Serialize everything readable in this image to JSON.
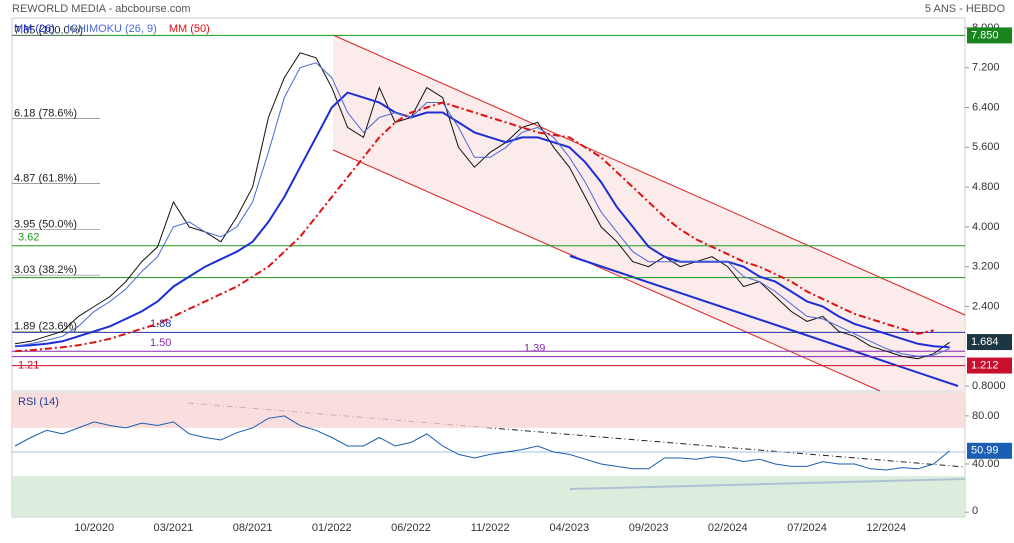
{
  "header": {
    "title": "REWORLD MEDIA - abcbourse.com",
    "period": "5 ANS - HEBDO"
  },
  "chart_data": [
    {
      "type": "line",
      "categories": [
        null,
        null,
        null,
        null,
        null,
        "10/2020",
        null,
        null,
        null,
        null,
        "03/2021",
        null,
        null,
        null,
        null,
        "08/2021",
        null,
        null,
        null,
        null,
        "01/2022",
        null,
        null,
        null,
        null,
        "06/2022",
        null,
        null,
        null,
        null,
        "11/2022",
        null,
        null,
        null,
        null,
        "04/2023",
        null,
        null,
        null,
        null,
        "09/2023",
        null,
        null,
        null,
        null,
        "02/2024",
        null,
        null,
        null,
        null,
        "07/2024",
        null,
        null,
        null,
        null,
        "12/2024",
        null,
        null,
        null,
        null
      ],
      "values": [
        1.65,
        1.7,
        1.8,
        1.9,
        2.2,
        2.4,
        2.6,
        2.9,
        3.3,
        3.6,
        4.5,
        4.0,
        3.9,
        3.7,
        4.2,
        4.8,
        6.2,
        7.0,
        7.5,
        7.4,
        6.8,
        6.0,
        5.8,
        6.8,
        6.1,
        6.2,
        6.8,
        6.6,
        5.6,
        5.2,
        5.5,
        5.7,
        6.0,
        6.1,
        5.6,
        5.2,
        4.6,
        4.0,
        3.7,
        3.3,
        3.2,
        3.4,
        3.2,
        3.3,
        3.4,
        3.2,
        2.8,
        2.9,
        2.6,
        2.3,
        2.1,
        2.2,
        1.9,
        1.8,
        1.6,
        1.5,
        1.4,
        1.35,
        1.45,
        1.68
      ],
      "color": "#111111",
      "series": [
        {
          "name": "MM (26)",
          "color": "#1c2fd6",
          "values": [
            1.6,
            1.62,
            1.65,
            1.7,
            1.8,
            1.9,
            2.0,
            2.15,
            2.3,
            2.5,
            2.8,
            3.0,
            3.2,
            3.35,
            3.5,
            3.7,
            4.1,
            4.6,
            5.2,
            5.8,
            6.4,
            6.7,
            6.6,
            6.5,
            6.3,
            6.2,
            6.3,
            6.3,
            6.1,
            5.9,
            5.8,
            5.7,
            5.8,
            5.8,
            5.7,
            5.6,
            5.3,
            4.9,
            4.4,
            4.0,
            3.6,
            3.4,
            3.3,
            3.3,
            3.3,
            3.3,
            3.2,
            3.0,
            2.9,
            2.7,
            2.5,
            2.4,
            2.2,
            2.05,
            1.95,
            1.85,
            1.75,
            1.65,
            1.6,
            1.58
          ]
        },
        {
          "name": "ICHIMOKU (26, 9)",
          "color": "#4a68d8",
          "values": [
            1.6,
            1.65,
            1.72,
            1.8,
            2.0,
            2.3,
            2.5,
            2.75,
            3.1,
            3.4,
            4.0,
            4.1,
            3.9,
            3.8,
            4.0,
            4.5,
            5.5,
            6.6,
            7.2,
            7.3,
            7.0,
            6.3,
            5.9,
            6.2,
            6.3,
            6.2,
            6.5,
            6.5,
            6.0,
            5.4,
            5.4,
            5.6,
            5.9,
            6.0,
            5.8,
            5.4,
            4.9,
            4.3,
            3.9,
            3.5,
            3.3,
            3.3,
            3.3,
            3.3,
            3.3,
            3.3,
            3.0,
            2.9,
            2.7,
            2.45,
            2.2,
            2.15,
            2.0,
            1.85,
            1.7,
            1.55,
            1.45,
            1.4,
            1.42,
            1.55
          ]
        },
        {
          "name": "MM (50)",
          "color": "#dd1111",
          "dashed": true,
          "values": [
            1.5,
            1.52,
            1.55,
            1.58,
            1.62,
            1.68,
            1.75,
            1.85,
            1.95,
            2.05,
            2.2,
            2.35,
            2.5,
            2.65,
            2.8,
            3.0,
            3.2,
            3.5,
            3.8,
            4.2,
            4.6,
            5.0,
            5.4,
            5.8,
            6.1,
            6.3,
            6.4,
            6.5,
            6.4,
            6.3,
            6.2,
            6.1,
            6.0,
            5.9,
            5.85,
            5.8,
            5.6,
            5.4,
            5.1,
            4.8,
            4.5,
            4.2,
            3.95,
            3.75,
            3.6,
            3.45,
            3.3,
            3.2,
            3.05,
            2.9,
            2.7,
            2.55,
            2.4,
            2.25,
            2.15,
            2.05,
            1.95,
            1.85,
            1.92,
            null
          ]
        }
      ],
      "ylim": [
        0.7,
        8.2
      ],
      "yticks": [
        {
          "value": 8,
          "label": "8.000"
        },
        {
          "value": 7.2,
          "label": "7.200"
        },
        {
          "value": 6.4,
          "label": "6.400"
        },
        {
          "value": 5.6,
          "label": "5.600"
        },
        {
          "value": 4.8,
          "label": "4.800"
        },
        {
          "value": 4,
          "label": "4.000"
        },
        {
          "value": 3.2,
          "label": "3.200"
        },
        {
          "value": 2.4,
          "label": "2.400"
        },
        {
          "value": 0.8,
          "label": "0.8000"
        }
      ],
      "levels": [
        {
          "value": 7.85,
          "label": "7.85 (100.0%)"
        },
        {
          "value": 6.18,
          "label": "6.18 (78.6%)"
        },
        {
          "value": 4.87,
          "label": "4.87 (61.8%)"
        },
        {
          "value": 3.95,
          "label": "3.95 (50.0%)"
        },
        {
          "value": 3.03,
          "label": "3.03 (38.2%)"
        },
        {
          "value": 1.89,
          "label": "1.89 (23.6%)"
        }
      ],
      "hlines": [
        {
          "value": 7.85,
          "color": "#1a9a1a"
        },
        {
          "value": 3.62,
          "label": "3.62",
          "color": "#1a9a1a"
        },
        {
          "value": 2.98,
          "color": "#1a9a1a"
        },
        {
          "value": 1.88,
          "label": "1.88",
          "color": "#2233aa"
        },
        {
          "value": 1.5,
          "label": "1.50",
          "color": "#8a2ab0"
        },
        {
          "value": 1.39,
          "label": "1.39",
          "color": "#8a2ab0"
        },
        {
          "value": 1.21,
          "label": "1.21",
          "color": "#cc1122"
        }
      ],
      "price_tags": [
        {
          "value": 7.85,
          "label": "7.850",
          "color": "#17851c"
        },
        {
          "value": 1.684,
          "label": "1.684",
          "color": "#1d3644"
        },
        {
          "value": 1.212,
          "label": "1.212",
          "color": "#c8102e"
        }
      ]
    },
    {
      "type": "line",
      "title": "RSI (14)",
      "color": "#1a5fb4",
      "values": [
        55,
        62,
        68,
        65,
        70,
        75,
        72,
        70,
        74,
        72,
        75,
        65,
        62,
        60,
        66,
        70,
        78,
        80,
        72,
        68,
        62,
        55,
        55,
        62,
        55,
        58,
        65,
        55,
        48,
        45,
        48,
        50,
        52,
        55,
        50,
        48,
        44,
        40,
        38,
        36,
        36,
        45,
        45,
        44,
        46,
        45,
        42,
        44,
        40,
        38,
        38,
        42,
        40,
        40,
        36,
        35,
        37,
        36,
        40,
        50.99
      ],
      "ylim": [
        -4,
        99
      ],
      "yticks": [
        0,
        {
          "value": 40,
          "label": "40.00"
        },
        {
          "value": 80,
          "label": "80.00"
        }
      ],
      "overbought": 70,
      "oversold": 30,
      "midline": 50,
      "price_tag": {
        "value": 50.99,
        "label": "50.99"
      }
    }
  ]
}
